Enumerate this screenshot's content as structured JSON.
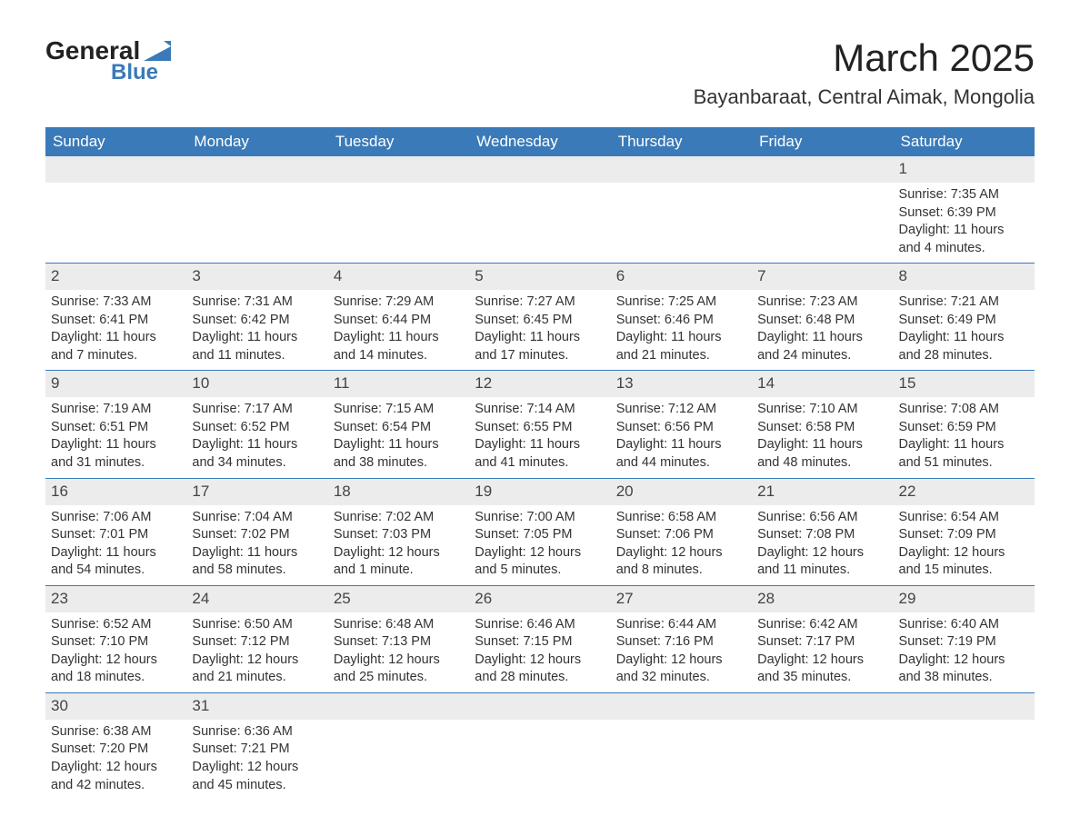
{
  "logo": {
    "line1": "General",
    "line2": "Blue"
  },
  "title": "March 2025",
  "subtitle": "Bayanbaraat, Central Aimak, Mongolia",
  "colors": {
    "header_bg": "#3a7ab8",
    "header_text": "#ffffff",
    "daynum_bg": "#ececec",
    "row_divider": "#3a7ab8",
    "body_text": "#333333",
    "logo_accent": "#3a7ab8"
  },
  "typography": {
    "title_fontsize": 42,
    "subtitle_fontsize": 22,
    "header_fontsize": 17,
    "daynum_fontsize": 17,
    "cell_fontsize": 14.5
  },
  "layout": {
    "columns": 7,
    "weeks": 6
  },
  "weekdays": [
    "Sunday",
    "Monday",
    "Tuesday",
    "Wednesday",
    "Thursday",
    "Friday",
    "Saturday"
  ],
  "weeks": [
    [
      null,
      null,
      null,
      null,
      null,
      null,
      {
        "d": "1",
        "sr": "Sunrise: 7:35 AM",
        "ss": "Sunset: 6:39 PM",
        "dl1": "Daylight: 11 hours",
        "dl2": "and 4 minutes."
      }
    ],
    [
      {
        "d": "2",
        "sr": "Sunrise: 7:33 AM",
        "ss": "Sunset: 6:41 PM",
        "dl1": "Daylight: 11 hours",
        "dl2": "and 7 minutes."
      },
      {
        "d": "3",
        "sr": "Sunrise: 7:31 AM",
        "ss": "Sunset: 6:42 PM",
        "dl1": "Daylight: 11 hours",
        "dl2": "and 11 minutes."
      },
      {
        "d": "4",
        "sr": "Sunrise: 7:29 AM",
        "ss": "Sunset: 6:44 PM",
        "dl1": "Daylight: 11 hours",
        "dl2": "and 14 minutes."
      },
      {
        "d": "5",
        "sr": "Sunrise: 7:27 AM",
        "ss": "Sunset: 6:45 PM",
        "dl1": "Daylight: 11 hours",
        "dl2": "and 17 minutes."
      },
      {
        "d": "6",
        "sr": "Sunrise: 7:25 AM",
        "ss": "Sunset: 6:46 PM",
        "dl1": "Daylight: 11 hours",
        "dl2": "and 21 minutes."
      },
      {
        "d": "7",
        "sr": "Sunrise: 7:23 AM",
        "ss": "Sunset: 6:48 PM",
        "dl1": "Daylight: 11 hours",
        "dl2": "and 24 minutes."
      },
      {
        "d": "8",
        "sr": "Sunrise: 7:21 AM",
        "ss": "Sunset: 6:49 PM",
        "dl1": "Daylight: 11 hours",
        "dl2": "and 28 minutes."
      }
    ],
    [
      {
        "d": "9",
        "sr": "Sunrise: 7:19 AM",
        "ss": "Sunset: 6:51 PM",
        "dl1": "Daylight: 11 hours",
        "dl2": "and 31 minutes."
      },
      {
        "d": "10",
        "sr": "Sunrise: 7:17 AM",
        "ss": "Sunset: 6:52 PM",
        "dl1": "Daylight: 11 hours",
        "dl2": "and 34 minutes."
      },
      {
        "d": "11",
        "sr": "Sunrise: 7:15 AM",
        "ss": "Sunset: 6:54 PM",
        "dl1": "Daylight: 11 hours",
        "dl2": "and 38 minutes."
      },
      {
        "d": "12",
        "sr": "Sunrise: 7:14 AM",
        "ss": "Sunset: 6:55 PM",
        "dl1": "Daylight: 11 hours",
        "dl2": "and 41 minutes."
      },
      {
        "d": "13",
        "sr": "Sunrise: 7:12 AM",
        "ss": "Sunset: 6:56 PM",
        "dl1": "Daylight: 11 hours",
        "dl2": "and 44 minutes."
      },
      {
        "d": "14",
        "sr": "Sunrise: 7:10 AM",
        "ss": "Sunset: 6:58 PM",
        "dl1": "Daylight: 11 hours",
        "dl2": "and 48 minutes."
      },
      {
        "d": "15",
        "sr": "Sunrise: 7:08 AM",
        "ss": "Sunset: 6:59 PM",
        "dl1": "Daylight: 11 hours",
        "dl2": "and 51 minutes."
      }
    ],
    [
      {
        "d": "16",
        "sr": "Sunrise: 7:06 AM",
        "ss": "Sunset: 7:01 PM",
        "dl1": "Daylight: 11 hours",
        "dl2": "and 54 minutes."
      },
      {
        "d": "17",
        "sr": "Sunrise: 7:04 AM",
        "ss": "Sunset: 7:02 PM",
        "dl1": "Daylight: 11 hours",
        "dl2": "and 58 minutes."
      },
      {
        "d": "18",
        "sr": "Sunrise: 7:02 AM",
        "ss": "Sunset: 7:03 PM",
        "dl1": "Daylight: 12 hours",
        "dl2": "and 1 minute."
      },
      {
        "d": "19",
        "sr": "Sunrise: 7:00 AM",
        "ss": "Sunset: 7:05 PM",
        "dl1": "Daylight: 12 hours",
        "dl2": "and 5 minutes."
      },
      {
        "d": "20",
        "sr": "Sunrise: 6:58 AM",
        "ss": "Sunset: 7:06 PM",
        "dl1": "Daylight: 12 hours",
        "dl2": "and 8 minutes."
      },
      {
        "d": "21",
        "sr": "Sunrise: 6:56 AM",
        "ss": "Sunset: 7:08 PM",
        "dl1": "Daylight: 12 hours",
        "dl2": "and 11 minutes."
      },
      {
        "d": "22",
        "sr": "Sunrise: 6:54 AM",
        "ss": "Sunset: 7:09 PM",
        "dl1": "Daylight: 12 hours",
        "dl2": "and 15 minutes."
      }
    ],
    [
      {
        "d": "23",
        "sr": "Sunrise: 6:52 AM",
        "ss": "Sunset: 7:10 PM",
        "dl1": "Daylight: 12 hours",
        "dl2": "and 18 minutes."
      },
      {
        "d": "24",
        "sr": "Sunrise: 6:50 AM",
        "ss": "Sunset: 7:12 PM",
        "dl1": "Daylight: 12 hours",
        "dl2": "and 21 minutes."
      },
      {
        "d": "25",
        "sr": "Sunrise: 6:48 AM",
        "ss": "Sunset: 7:13 PM",
        "dl1": "Daylight: 12 hours",
        "dl2": "and 25 minutes."
      },
      {
        "d": "26",
        "sr": "Sunrise: 6:46 AM",
        "ss": "Sunset: 7:15 PM",
        "dl1": "Daylight: 12 hours",
        "dl2": "and 28 minutes."
      },
      {
        "d": "27",
        "sr": "Sunrise: 6:44 AM",
        "ss": "Sunset: 7:16 PM",
        "dl1": "Daylight: 12 hours",
        "dl2": "and 32 minutes."
      },
      {
        "d": "28",
        "sr": "Sunrise: 6:42 AM",
        "ss": "Sunset: 7:17 PM",
        "dl1": "Daylight: 12 hours",
        "dl2": "and 35 minutes."
      },
      {
        "d": "29",
        "sr": "Sunrise: 6:40 AM",
        "ss": "Sunset: 7:19 PM",
        "dl1": "Daylight: 12 hours",
        "dl2": "and 38 minutes."
      }
    ],
    [
      {
        "d": "30",
        "sr": "Sunrise: 6:38 AM",
        "ss": "Sunset: 7:20 PM",
        "dl1": "Daylight: 12 hours",
        "dl2": "and 42 minutes."
      },
      {
        "d": "31",
        "sr": "Sunrise: 6:36 AM",
        "ss": "Sunset: 7:21 PM",
        "dl1": "Daylight: 12 hours",
        "dl2": "and 45 minutes."
      },
      null,
      null,
      null,
      null,
      null
    ]
  ]
}
